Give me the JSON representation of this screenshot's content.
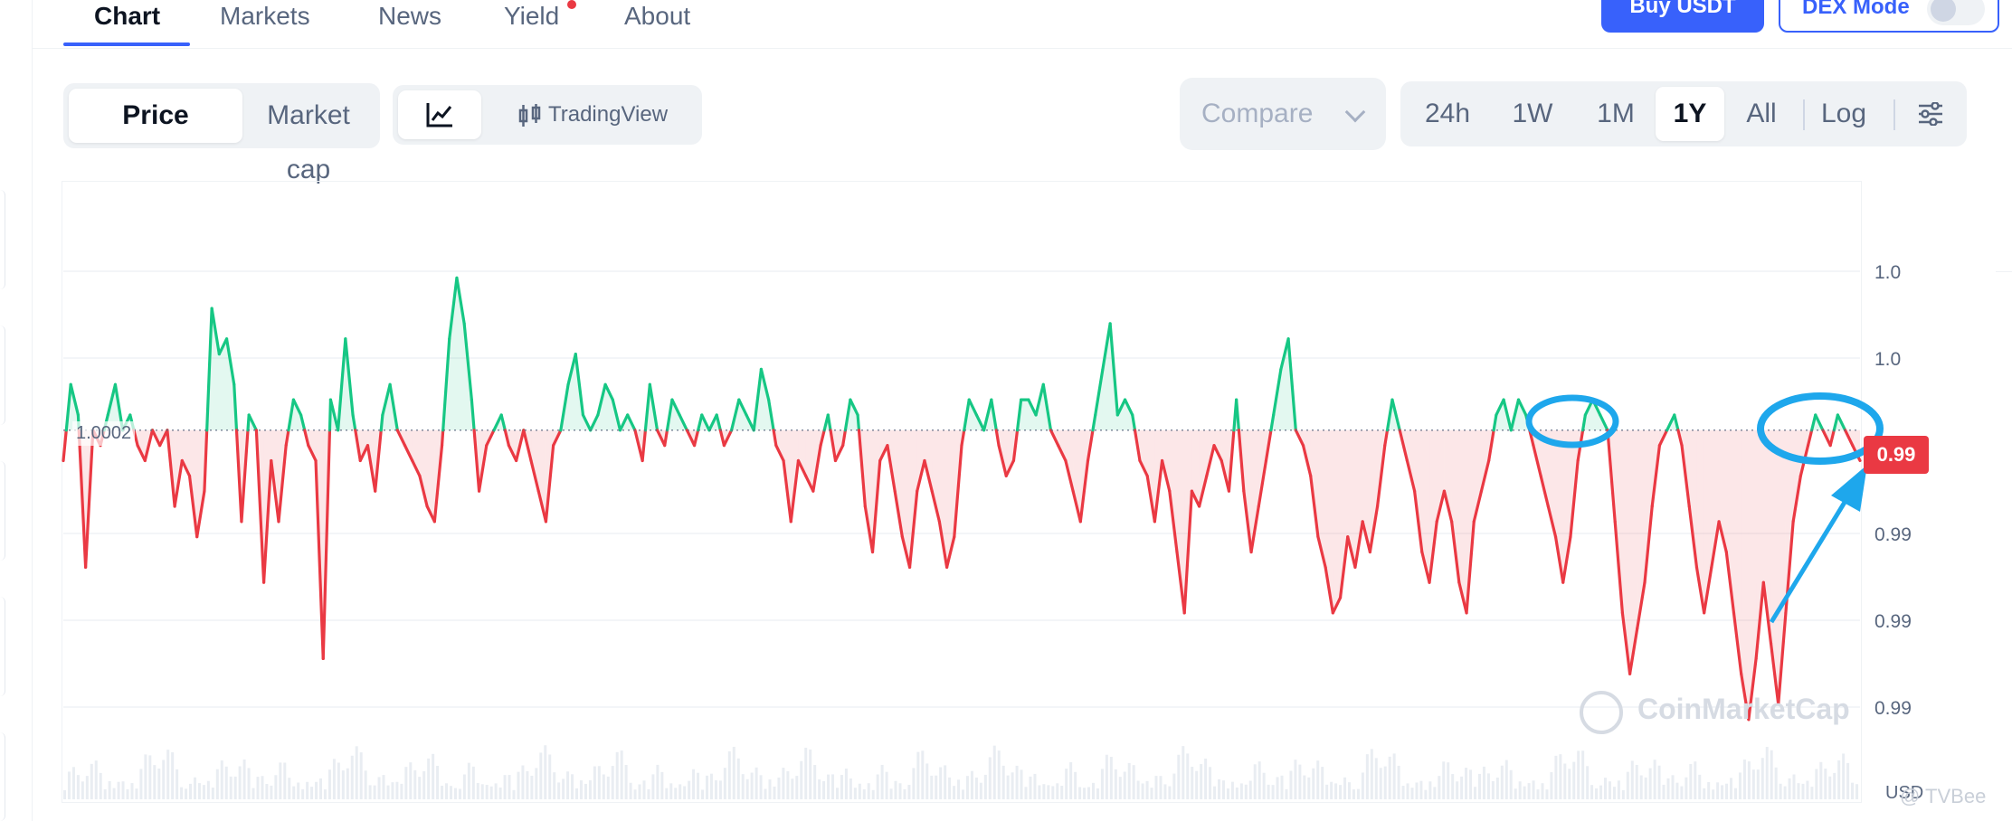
{
  "nav": {
    "tabs": [
      {
        "label": "Chart",
        "active": true
      },
      {
        "label": "Markets",
        "active": false
      },
      {
        "label": "News",
        "active": false
      },
      {
        "label": "Yield",
        "active": false,
        "badge": true
      },
      {
        "label": "About",
        "active": false
      }
    ],
    "buy_label": "Buy USDT",
    "dex_label": "DEX Mode",
    "dex_enabled": false
  },
  "controls": {
    "metric_tabs": [
      {
        "label": "Price",
        "active": true
      },
      {
        "label": "Market cap",
        "active": false
      }
    ],
    "chart_type": {
      "line_icon": "line-chart-icon",
      "tradingview_icon": "candlestick-icon",
      "tradingview_label": "TradingView"
    },
    "compare_label": "Compare",
    "ranges": [
      {
        "label": "24h",
        "active": false
      },
      {
        "label": "1W",
        "active": false
      },
      {
        "label": "1M",
        "active": false
      },
      {
        "label": "1Y",
        "active": true
      },
      {
        "label": "All",
        "active": false
      }
    ],
    "log_label": "Log",
    "settings_icon": "sliders-icon"
  },
  "chart": {
    "reference_label": "1.0002",
    "current_price": "0.99",
    "y_axis_labels": [
      "1.0",
      "1.0",
      "0.99",
      "0.99",
      "0.99"
    ],
    "unit_label": "USD",
    "watermark": "CoinMarketCap",
    "credit": "@ TVBee",
    "colors": {
      "up": "#16c784",
      "down": "#ea3943",
      "accent": "#3861fb",
      "annotation": "#1ea7ec"
    }
  },
  "chart_data": {
    "type": "line",
    "title": "",
    "xlabel": "",
    "ylabel": "",
    "baseline": 1.0002,
    "y_tick_labels": [
      "1.0",
      "1.0",
      "0.99",
      "0.99",
      "0.99"
    ],
    "ylim": [
      0.9978,
      1.0016
    ],
    "series": [
      {
        "values": [
          1.0,
          1.0005,
          1.0003,
          0.9993,
          1.0002,
          1.0001,
          1.0003,
          1.0005,
          1.0002,
          1.0003,
          1.0001,
          1.0,
          1.0002,
          1.0001,
          1.0002,
          0.9997,
          1.0,
          0.9999,
          0.9995,
          0.9998,
          1.001,
          1.0007,
          1.0008,
          1.0005,
          0.9996,
          1.0003,
          1.0002,
          0.9992,
          1.0,
          0.9996,
          1.0001,
          1.0004,
          1.0003,
          1.0001,
          1.0,
          0.9987,
          1.0004,
          1.0002,
          1.0008,
          1.0003,
          1.0,
          1.0001,
          0.9998,
          1.0003,
          1.0005,
          1.0002,
          1.0001,
          1.0,
          0.9999,
          0.9997,
          0.9996,
          1.0001,
          1.0008,
          1.0012,
          1.0009,
          1.0004,
          0.9998,
          1.0001,
          1.0002,
          1.0003,
          1.0001,
          1.0,
          1.0002,
          1.0,
          0.9998,
          0.9996,
          1.0001,
          1.0002,
          1.0005,
          1.0007,
          1.0003,
          1.0002,
          1.0003,
          1.0005,
          1.0004,
          1.0002,
          1.0003,
          1.0002,
          1.0,
          1.0005,
          1.0002,
          1.0001,
          1.0004,
          1.0003,
          1.0002,
          1.0001,
          1.0003,
          1.0002,
          1.0003,
          1.0001,
          1.0002,
          1.0004,
          1.0003,
          1.0002,
          1.0006,
          1.0004,
          1.0001,
          1.0,
          0.9996,
          1.0,
          0.9999,
          0.9998,
          1.0001,
          1.0003,
          1.0,
          1.0001,
          1.0004,
          1.0003,
          0.9997,
          0.9994,
          1.0,
          1.0001,
          0.9998,
          0.9995,
          0.9993,
          0.9998,
          1.0,
          0.9998,
          0.9996,
          0.9993,
          0.9995,
          1.0001,
          1.0004,
          1.0003,
          1.0002,
          1.0004,
          1.0001,
          0.9999,
          1.0,
          1.0004,
          1.0004,
          1.0003,
          1.0005,
          1.0002,
          1.0001,
          1.0,
          0.9998,
          0.9996,
          1.0,
          1.0003,
          1.0006,
          1.0009,
          1.0003,
          1.0004,
          1.0003,
          1.0,
          0.9999,
          0.9996,
          1.0,
          0.9998,
          0.9994,
          0.999,
          0.9998,
          0.9997,
          0.9999,
          1.0001,
          1.0,
          0.9998,
          1.0004,
          0.9998,
          0.9994,
          0.9997,
          1.0,
          1.0003,
          1.0006,
          1.0008,
          1.0002,
          1.0001,
          0.9999,
          0.9995,
          0.9993,
          0.999,
          0.9991,
          0.9995,
          0.9993,
          0.9996,
          0.9994,
          0.9997,
          1.0001,
          1.0004,
          1.0002,
          1.0,
          0.9998,
          0.9994,
          0.9992,
          0.9996,
          0.9998,
          0.9996,
          0.9992,
          0.999,
          0.9996,
          0.9998,
          1.0,
          1.0003,
          1.0004,
          1.0002,
          1.0004,
          1.0003,
          1.0001,
          0.9999,
          0.9997,
          0.9995,
          0.9992,
          0.9995,
          1.0,
          1.0003,
          1.0004,
          1.0003,
          1.0002,
          0.9996,
          0.999,
          0.9986,
          0.9989,
          0.9992,
          0.9997,
          1.0001,
          1.0002,
          1.0003,
          1.0001,
          0.9997,
          0.9993,
          0.999,
          0.9993,
          0.9996,
          0.9994,
          0.999,
          0.9986,
          0.9983,
          0.9987,
          0.9992,
          0.9988,
          0.9984,
          0.999,
          0.9996,
          0.9999,
          1.0001,
          1.0003,
          1.0002,
          1.0001,
          1.0003,
          1.0002,
          1.0001,
          1.0
        ]
      }
    ],
    "volume_bars": true,
    "annotations": [
      "ellipse-highlight-mid-right",
      "ellipse-highlight-right",
      "arrow-to-current-price"
    ]
  }
}
